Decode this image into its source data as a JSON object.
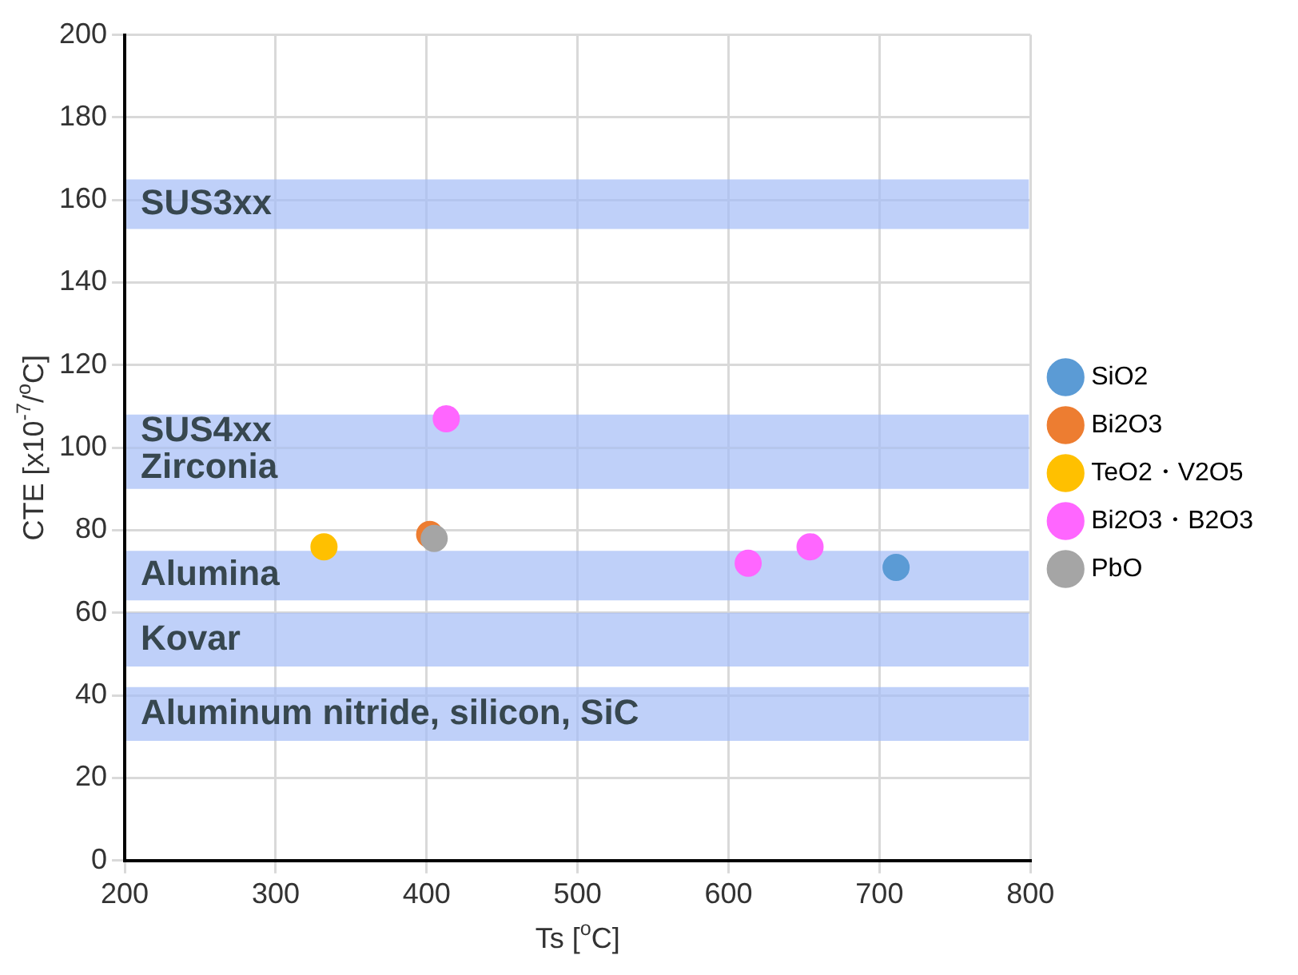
{
  "chart_data": {
    "type": "scatter",
    "xlabel": "Ts [$^{o}$C]",
    "ylabel": "CTE [x10$^{-7}$/$^{o}$C]",
    "xlim": [
      200,
      800
    ],
    "xticks": [
      200,
      300,
      400,
      500,
      600,
      700,
      800
    ],
    "ylim": [
      0,
      200
    ],
    "yticks": [
      0,
      20,
      40,
      60,
      80,
      100,
      120,
      140,
      160,
      180,
      200
    ],
    "grid": true,
    "legend": "right",
    "marker": "circle",
    "series": [
      {
        "name": "SiO2",
        "color": "#5b9bd5",
        "x": [
          711
        ],
        "values": [
          71
        ]
      },
      {
        "name": "Bi2O3",
        "color": "#ed7d31",
        "x": [
          402
        ],
        "values": [
          79
        ]
      },
      {
        "name": "TeO2・V2O5",
        "color": "#ffc000",
        "x": [
          332
        ],
        "values": [
          76
        ]
      },
      {
        "name": "Bi2O3・B2O3",
        "color": "#ff66ff",
        "x": [
          413,
          613,
          654
        ],
        "values": [
          107,
          72,
          76
        ]
      },
      {
        "name": "PbO",
        "color": "#a5a5a5",
        "x": [
          405
        ],
        "values": [
          78
        ]
      }
    ],
    "bands": [
      {
        "axis": "y",
        "from": 153,
        "to": 165,
        "label": "SUS3xx",
        "color": "#a4bcf7"
      },
      {
        "axis": "y",
        "from": 100,
        "to": 108,
        "label": "SUS4xx",
        "color": "#a4bcf7"
      },
      {
        "axis": "y",
        "from": 90,
        "to": 100,
        "label": "Zirconia",
        "color": "#a4bcf7"
      },
      {
        "axis": "y",
        "from": 63,
        "to": 75,
        "label": "Alumina",
        "color": "#a4bcf7"
      },
      {
        "axis": "y",
        "from": 47,
        "to": 60,
        "label": "Kovar",
        "color": "#a4bcf7"
      },
      {
        "axis": "y",
        "from": 29,
        "to": 42,
        "label": "Aluminum nitride, silicon, SiC",
        "color": "#a4bcf7"
      }
    ]
  }
}
